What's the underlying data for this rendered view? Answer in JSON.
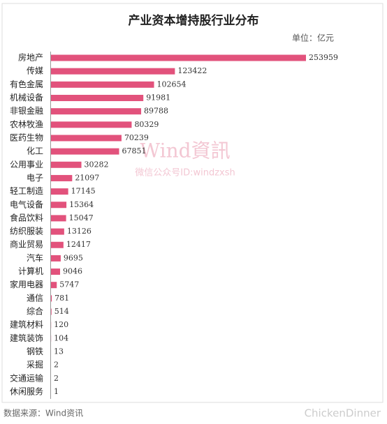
{
  "chart_data": {
    "type": "bar",
    "orientation": "horizontal",
    "title": "产业资本增持股行业分布",
    "unit": "单位：亿元",
    "source": "数据来源：Wind资讯",
    "watermarks": [
      "Wind資訊",
      "微信公众号ID:windzxsh",
      "ChickenDinner"
    ],
    "color": "#e2527c",
    "categories": [
      "房地产",
      "传媒",
      "有色金属",
      "机械设备",
      "非银金融",
      "农林牧渔",
      "医药生物",
      "化工",
      "公用事业",
      "电子",
      "轻工制造",
      "电气设备",
      "食品饮料",
      "纺织服装",
      "商业贸易",
      "汽车",
      "计算机",
      "家用电器",
      "通信",
      "综合",
      "建筑材料",
      "建筑装饰",
      "钢铁",
      "采掘",
      "交通运输",
      "休闲服务"
    ],
    "values": [
      253959,
      123422,
      102654,
      91981,
      89788,
      80329,
      70239,
      67851,
      30282,
      21097,
      17145,
      15364,
      15047,
      13126,
      12417,
      9695,
      9046,
      5747,
      781,
      514,
      120,
      104,
      13,
      2,
      2,
      1
    ]
  }
}
